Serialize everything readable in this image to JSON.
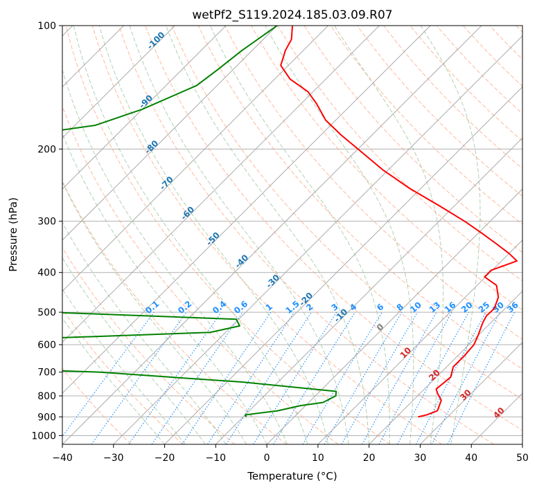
{
  "chart_data": {
    "type": "line",
    "title": "wetPf2_S119.2024.185.03.09.R07",
    "xlabel": "Temperature (°C)",
    "ylabel": "Pressure (hPa)",
    "xlim": [
      -40,
      50
    ],
    "ylim": [
      1050,
      100
    ],
    "y_scale": "log",
    "x_ticks": [
      -40,
      -30,
      -20,
      -10,
      0,
      10,
      20,
      30,
      40,
      50
    ],
    "y_ticks": [
      1000,
      900,
      800,
      700,
      600,
      500,
      400,
      300,
      200,
      100
    ],
    "grid": true,
    "colors": {
      "temperature": "#ff0000",
      "dewpoint": "#008000",
      "isotherm": "#888888",
      "dry_adiabat": "#ffa07a",
      "moist_adiabat": "#8fbc8f",
      "mixing_ratio": "#1e90ff",
      "label_temperature": "#1f77b4",
      "label_mixing": "#1e90ff",
      "label_theta": "#d62728",
      "label_zero": "#7f7f7f"
    },
    "series": [
      {
        "key": "temperature",
        "points": [
          [
            24.2,
            900
          ],
          [
            25.5,
            890
          ],
          [
            26.8,
            870
          ],
          [
            25.5,
            820
          ],
          [
            23.5,
            790
          ],
          [
            22.3,
            770
          ],
          [
            22.8,
            720
          ],
          [
            21.3,
            680
          ],
          [
            21.3,
            640
          ],
          [
            21.0,
            600
          ],
          [
            20.0,
            570
          ],
          [
            18.4,
            530
          ],
          [
            17.8,
            510
          ],
          [
            17.9,
            490
          ],
          [
            16.5,
            460
          ],
          [
            13.8,
            430
          ],
          [
            9.8,
            410
          ],
          [
            9.8,
            395
          ],
          [
            13.0,
            375
          ],
          [
            10.1,
            360
          ],
          [
            5.5,
            340
          ],
          [
            0.5,
            320
          ],
          [
            -5.0,
            300
          ],
          [
            -13.0,
            275
          ],
          [
            -22.0,
            250
          ],
          [
            -31.0,
            225
          ],
          [
            -40.0,
            200
          ],
          [
            -46.0,
            185
          ],
          [
            -52.0,
            170
          ],
          [
            -57.0,
            155
          ],
          [
            -61.0,
            145
          ],
          [
            -67.0,
            135
          ],
          [
            -71.5,
            125
          ],
          [
            -73.5,
            115
          ],
          [
            -74.5,
            108
          ],
          [
            -77.0,
            100
          ]
        ]
      },
      {
        "key": "dewpoint",
        "points": [
          [
            -9.4,
            900
          ],
          [
            -10.0,
            890
          ],
          [
            -4.5,
            870
          ],
          [
            -1.0,
            845
          ],
          [
            2.8,
            830
          ],
          [
            4.0,
            800
          ],
          [
            3.2,
            780
          ],
          [
            -17.0,
            740
          ],
          [
            -32.0,
            720
          ],
          [
            -47.0,
            700
          ],
          [
            -62.0,
            690
          ],
          [
            -66.0,
            680
          ],
          [
            -66.0,
            662
          ],
          [
            -67.0,
            660
          ],
          [
            -66.0,
            580
          ],
          [
            -33.0,
            560
          ],
          [
            -28.5,
            540
          ],
          [
            -30.5,
            520
          ],
          [
            -59.0,
            505
          ],
          [
            -69.0,
            500
          ],
          [
            -90.0,
            310
          ],
          [
            -100.0,
            245
          ],
          [
            -103.0,
            210
          ],
          [
            -105.5,
            183
          ],
          [
            -96.0,
            175
          ],
          [
            -90.0,
            160
          ],
          [
            -84.0,
            140
          ],
          [
            -83.0,
            128
          ],
          [
            -82.0,
            115
          ],
          [
            -80.0,
            100
          ]
        ]
      }
    ],
    "isotherm_labels": [
      "-100",
      "-90",
      "-80",
      "-70",
      "-60",
      "-50",
      "-40",
      "-30",
      "-20",
      "-10",
      "0",
      "10",
      "20",
      "30",
      "40"
    ],
    "mixing_ratio_labels": [
      "0.1",
      "0.2",
      "0.4",
      "0.6",
      "1",
      "1.5",
      "2",
      "3",
      "4",
      "6",
      "8",
      "10",
      "13",
      "16",
      "20",
      "25",
      "30",
      "36"
    ]
  }
}
